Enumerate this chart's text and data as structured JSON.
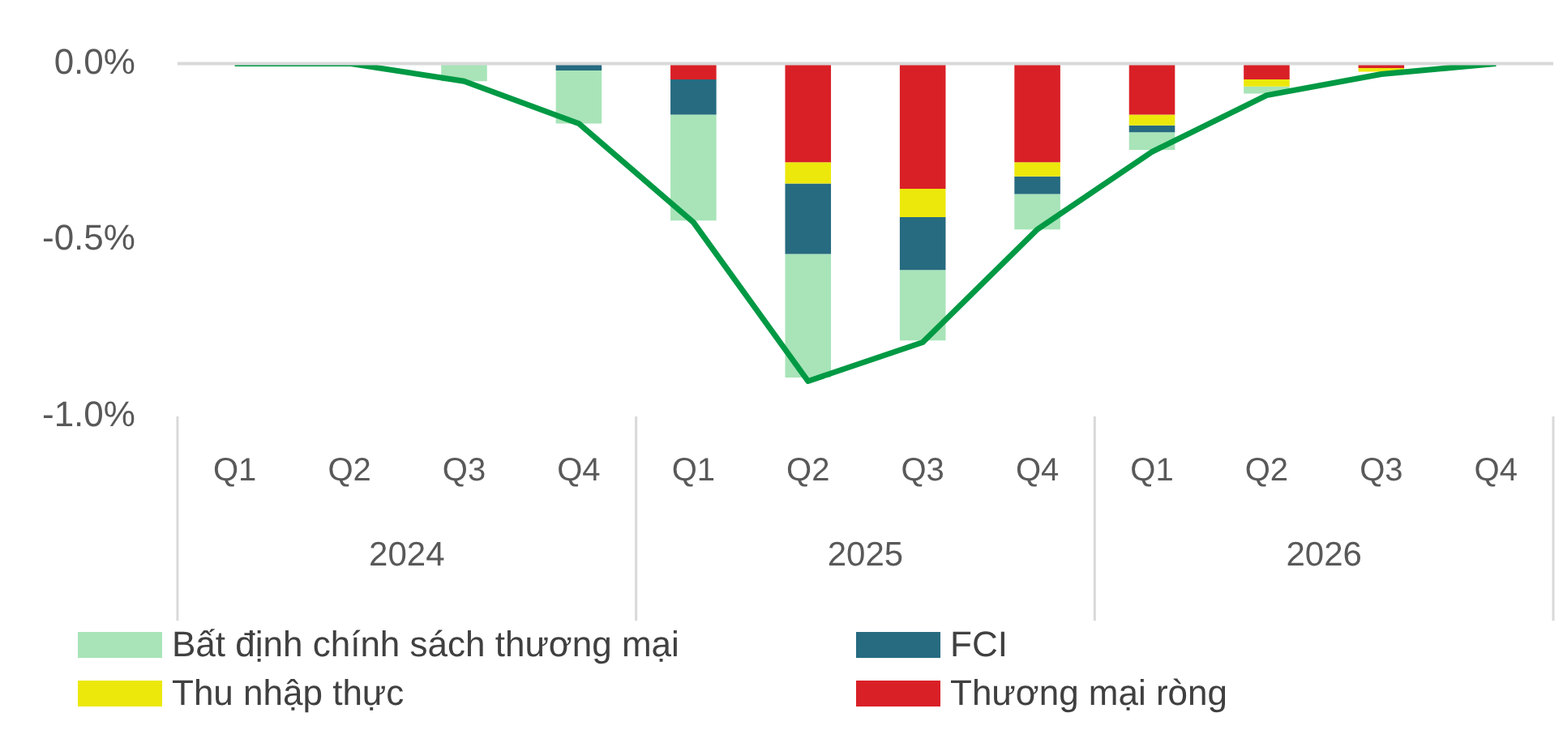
{
  "chart_data": {
    "type": "bar",
    "stacked": true,
    "categories": [
      "Q1",
      "Q2",
      "Q3",
      "Q4",
      "Q1",
      "Q2",
      "Q3",
      "Q4",
      "Q1",
      "Q2",
      "Q3",
      "Q4"
    ],
    "annotations": [
      "2024",
      "2025",
      "2026"
    ],
    "series": [
      {
        "name": "Thương mại ròng",
        "color": "#d92027",
        "values": [
          0,
          0,
          0,
          0,
          -0.045,
          -0.28,
          -0.355,
          -0.28,
          -0.145,
          -0.045,
          -0.013,
          0
        ]
      },
      {
        "name": "Thu nhập thực",
        "color": "#ece80c",
        "values": [
          0,
          0,
          0,
          0,
          0,
          -0.06,
          -0.08,
          -0.04,
          -0.03,
          -0.02,
          -0.01,
          0
        ]
      },
      {
        "name": "FCI",
        "color": "#276b80",
        "values": [
          0,
          0,
          0,
          -0.02,
          -0.1,
          -0.2,
          -0.15,
          -0.05,
          -0.02,
          0,
          0,
          0
        ]
      },
      {
        "name": "Bất định chính sách thương mại",
        "color": "#a8e4b8",
        "values": [
          0,
          0,
          -0.05,
          -0.15,
          -0.3,
          -0.35,
          -0.2,
          -0.1,
          -0.05,
          -0.02,
          0,
          0
        ]
      },
      {
        "type": "line",
        "color": "#009944",
        "marker": "none",
        "values": [
          0,
          0,
          -0.05,
          -0.17,
          -0.45,
          -0.9,
          -0.79,
          -0.47,
          -0.25,
          -0.09,
          -0.03,
          0
        ]
      }
    ],
    "ylim": [
      -1.0,
      0
    ],
    "yticks": [
      {
        "value": 0,
        "label": "0.0%"
      },
      {
        "value": -0.5,
        "label": "-0.5%"
      },
      {
        "value": -1.0,
        "label": "-1.0%"
      }
    ],
    "grid": false,
    "legend": "bottom"
  }
}
